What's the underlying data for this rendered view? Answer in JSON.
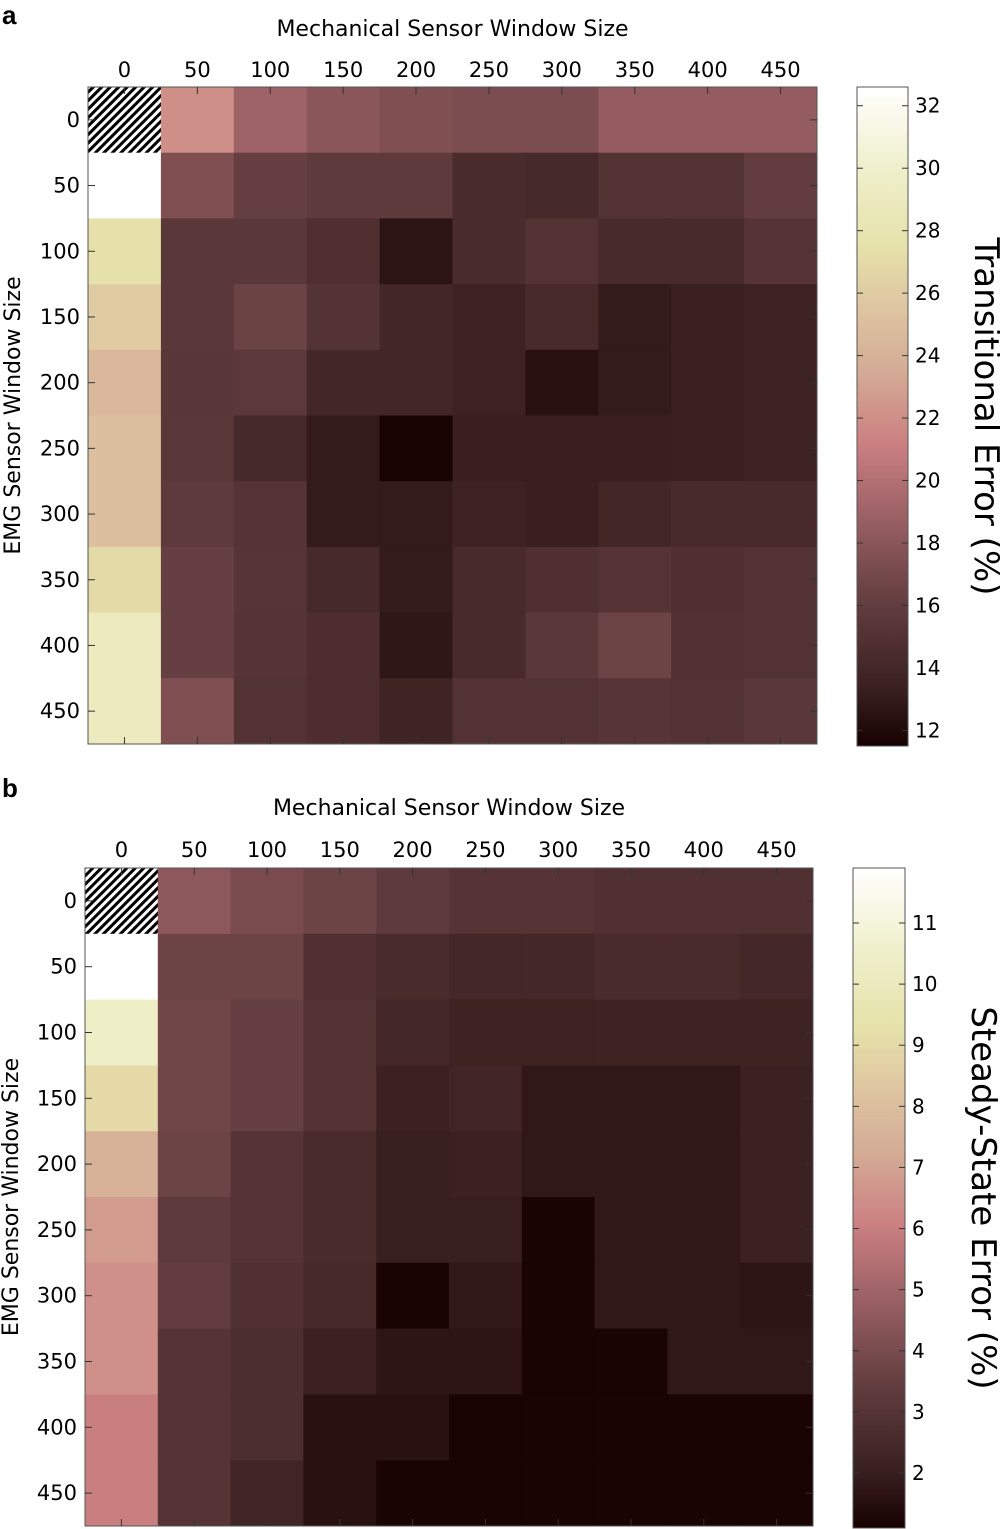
{
  "chart_data": [
    {
      "panel": "a",
      "type": "heatmap",
      "xlabel": "Mechanical Sensor Window Size",
      "ylabel": "EMG Sensor Window Size",
      "x_categories": [
        "0",
        "50",
        "100",
        "150",
        "200",
        "250",
        "300",
        "350",
        "400",
        "450"
      ],
      "y_categories": [
        "0",
        "50",
        "100",
        "150",
        "200",
        "250",
        "300",
        "350",
        "400",
        "450"
      ],
      "colorbar": {
        "label": "Transitional Error (%)",
        "min": 11.5,
        "max": 32.6,
        "ticks": [
          12,
          14,
          16,
          18,
          20,
          22,
          24,
          26,
          28,
          30,
          32
        ]
      },
      "values": [
        [
          null,
          22.0,
          19.0,
          18.0,
          17.5,
          17.3,
          17.3,
          18.5,
          18.5,
          18.5
        ],
        [
          32.6,
          17.5,
          16.2,
          15.8,
          15.8,
          14.5,
          14.2,
          15.0,
          15.0,
          16.0
        ],
        [
          27.5,
          15.5,
          15.5,
          14.8,
          12.6,
          14.5,
          15.0,
          14.3,
          14.3,
          15.2
        ],
        [
          26.0,
          15.5,
          16.5,
          15.1,
          14.0,
          13.6,
          14.3,
          13.0,
          13.4,
          13.6
        ],
        [
          24.5,
          15.4,
          15.6,
          14.0,
          14.0,
          13.6,
          12.4,
          13.0,
          13.4,
          13.6
        ],
        [
          25.0,
          15.5,
          14.2,
          13.0,
          11.6,
          13.3,
          13.3,
          13.3,
          13.4,
          13.6
        ],
        [
          25.0,
          15.8,
          15.2,
          13.0,
          13.0,
          13.6,
          13.3,
          14.0,
          14.3,
          14.3
        ],
        [
          27.0,
          16.2,
          15.3,
          14.2,
          13.0,
          14.3,
          14.8,
          15.2,
          14.8,
          15.0
        ],
        [
          29.0,
          16.2,
          15.2,
          14.6,
          12.8,
          14.3,
          15.5,
          16.6,
          14.9,
          15.0
        ],
        [
          29.0,
          17.5,
          15.0,
          14.6,
          13.7,
          15.0,
          15.0,
          15.3,
          15.0,
          15.5
        ]
      ]
    },
    {
      "panel": "b",
      "type": "heatmap",
      "xlabel": "Mechanical Sensor Window Size",
      "ylabel": "EMG Sensor Window Size",
      "x_categories": [
        "0",
        "50",
        "100",
        "150",
        "200",
        "250",
        "300",
        "350",
        "400",
        "450"
      ],
      "y_categories": [
        "0",
        "50",
        "100",
        "150",
        "200",
        "250",
        "300",
        "350",
        "400",
        "450"
      ],
      "colorbar": {
        "label": "Steady-State Error (%)",
        "min": 1.1,
        "max": 11.9,
        "ticks": [
          2,
          3,
          4,
          5,
          6,
          7,
          8,
          9,
          10,
          11
        ]
      },
      "values": [
        [
          null,
          4.5,
          4.0,
          3.7,
          3.3,
          3.0,
          3.0,
          2.8,
          2.8,
          2.8
        ],
        [
          11.9,
          3.7,
          3.7,
          2.8,
          2.6,
          2.4,
          2.4,
          2.6,
          2.6,
          2.4
        ],
        [
          10.4,
          3.8,
          3.5,
          2.9,
          2.4,
          2.2,
          2.2,
          2.2,
          2.2,
          2.2
        ],
        [
          9.0,
          3.8,
          3.5,
          2.9,
          2.1,
          2.3,
          1.8,
          1.8,
          1.8,
          2.1
        ],
        [
          7.5,
          3.7,
          3.0,
          2.6,
          2.0,
          2.1,
          1.8,
          1.8,
          1.8,
          2.1
        ],
        [
          6.8,
          3.3,
          3.0,
          2.6,
          2.0,
          2.0,
          1.2,
          1.8,
          1.8,
          2.1
        ],
        [
          6.5,
          3.4,
          2.8,
          2.5,
          1.2,
          1.8,
          1.2,
          1.8,
          1.8,
          1.7
        ],
        [
          6.5,
          3.0,
          2.7,
          2.1,
          1.7,
          1.7,
          1.2,
          1.2,
          1.8,
          1.8
        ],
        [
          6.0,
          3.0,
          2.7,
          1.6,
          1.6,
          1.2,
          1.2,
          1.2,
          1.2,
          1.2
        ],
        [
          6.0,
          3.0,
          2.3,
          1.6,
          1.2,
          1.2,
          1.2,
          1.2,
          1.2,
          1.2
        ]
      ]
    }
  ]
}
